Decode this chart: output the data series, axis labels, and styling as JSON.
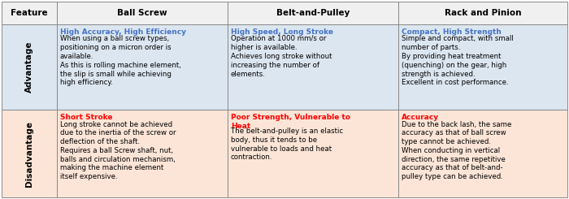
{
  "headers": [
    "Feature",
    "Ball Screw",
    "Belt-and-Pulley",
    "Rack and Pinion"
  ],
  "header_bg": "#f0f0f0",
  "advantage_bg": "#dce6f1",
  "disadvantage_bg": "#fce4d6",
  "border_color": "#888888",
  "header_text_color": "#000000",
  "advantage_title_color": "#4472c4",
  "disadvantage_title_color": "#ff0000",
  "body_text_color": "#000000",
  "row_labels": [
    "Advantage",
    "Disadvantage"
  ],
  "advantage_titles": [
    "High Accuracy, High Efficiency",
    "High Speed, Long Stroke",
    "Compact, High Strength"
  ],
  "advantage_bodies": [
    "When using a ball screw types,\npositioning on a micron order is\navailable.\nAs this is rolling machine element,\nthe slip is small while achieving\nhigh efficiency.",
    "Operation at 1000 mm/s or\nhigher is available.\nAchieves long stroke without\nincreasing the number of\nelements.",
    "Simple and compact, with small\nnumber of parts.\nBy providing heat treatment\n(quenching) on the gear, high\nstrength is achieved.\nExcellent in cost performance."
  ],
  "disadvantage_titles": [
    "Short Stroke",
    "Poor Strength, Vulnerable to\nHeat",
    "Accuracy"
  ],
  "disadvantage_bodies": [
    "Long stroke cannot be achieved\ndue to the inertia of the screw or\ndeflection of the shaft.\nRequires a ball Screw shaft, nut,\nballs and circulation mechanism,\nmaking the machine element\nitself expensive.",
    "The belt-and-pulley is an elastic\nbody, thus it tends to be\nvulnerable to loads and heat\ncontraction.",
    "Due to the back lash, the same\naccuracy as that of ball screw\ntype cannot be achieved.\nWhen conducting in vertical\ndirection, the same repetitive\naccuracy as that of belt-and-\npulley type can be achieved."
  ],
  "figsize": [
    7.0,
    2.45
  ],
  "dpi": 100
}
